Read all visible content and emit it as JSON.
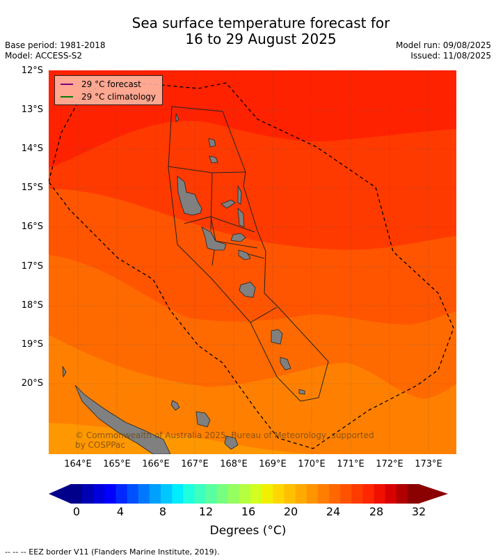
{
  "header": {
    "title_line1": "Sea surface temperature forecast for",
    "title_line2": "16 to 29 August 2025",
    "base_period": "Base period: 1981-2018",
    "model": "Model: ACCESS-S2",
    "model_run": "Model run: 09/08/2025",
    "issued": "Issued: 11/08/2025"
  },
  "map": {
    "lat_labels": [
      "12°S",
      "13°S",
      "14°S",
      "15°S",
      "16°S",
      "17°S",
      "18°S",
      "19°S",
      "20°S"
    ],
    "lon_labels": [
      "164°E",
      "165°E",
      "166°E",
      "167°E",
      "168°E",
      "169°E",
      "170°E",
      "171°E",
      "172°E",
      "173°E"
    ],
    "legend": {
      "forecast_label": "29 °C  forecast",
      "forecast_color": "#800080",
      "climatology_label": "29 °C  climatology",
      "climatology_color": "#008000"
    },
    "copyright_line1": "© Commonwealth of Australia 2025, Bureau of Meteorology, supported",
    "copyright_line2": "by COSPPac",
    "land_color": "#808080",
    "zone_colors": [
      "#ff2200",
      "#ff3a00",
      "#ff5500",
      "#ff6a00",
      "#ff8000",
      "#ff9800"
    ]
  },
  "colorbar": {
    "tick_labels": [
      "0",
      "4",
      "8",
      "12",
      "16",
      "20",
      "24",
      "28",
      "32"
    ],
    "title": "Degrees (°C)",
    "colors": [
      "#00008b",
      "#0000b4",
      "#0000dc",
      "#0000ff",
      "#0028ff",
      "#0050ff",
      "#0078ff",
      "#00a0ff",
      "#00c8ff",
      "#00ecff",
      "#1effe0",
      "#3cffc0",
      "#5affa0",
      "#78ff80",
      "#96ff60",
      "#b4ff40",
      "#d2ff20",
      "#f0f000",
      "#ffd700",
      "#ffc000",
      "#ffaa00",
      "#ff9400",
      "#ff7e00",
      "#ff6800",
      "#ff5200",
      "#ff3c00",
      "#ff2600",
      "#f01000",
      "#d80000",
      "#b00000",
      "#8b0000"
    ]
  },
  "footnote": "--  --  -- EEZ border V11 (Flanders Marine Institute, 2019)."
}
